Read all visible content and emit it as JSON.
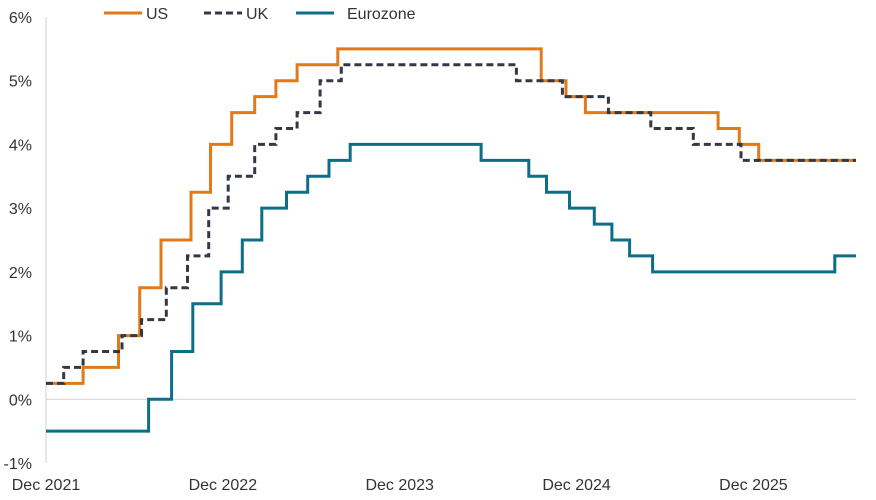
{
  "chart_data": {
    "type": "line",
    "title": "",
    "xlabel": "",
    "ylabel": "",
    "x_unit": "year",
    "xlim": [
      2021.92,
      2026.5
    ],
    "ylim": [
      -1,
      6
    ],
    "grid": false,
    "legend_position": "top",
    "y_ticks": [
      {
        "value": 6,
        "label": "6%"
      },
      {
        "value": 5,
        "label": "5%"
      },
      {
        "value": 4,
        "label": "4%"
      },
      {
        "value": 3,
        "label": "3%"
      },
      {
        "value": 2,
        "label": "2%"
      },
      {
        "value": 1,
        "label": "1%"
      },
      {
        "value": 0,
        "label": "0%"
      },
      {
        "value": -1,
        "label": "-1%"
      }
    ],
    "x_ticks": [
      {
        "value": 2021.92,
        "label": "Dec 2021"
      },
      {
        "value": 2022.92,
        "label": "Dec 2022"
      },
      {
        "value": 2023.92,
        "label": "Dec 2023"
      },
      {
        "value": 2024.92,
        "label": "Dec 2024"
      },
      {
        "value": 2025.92,
        "label": "Dec 2025"
      }
    ],
    "series": [
      {
        "name": "US",
        "color": "#E07A1A",
        "style": "solid",
        "points": [
          [
            2021.92,
            0.25
          ],
          [
            2022.13,
            0.25
          ],
          [
            2022.13,
            0.5
          ],
          [
            2022.33,
            0.5
          ],
          [
            2022.33,
            1.0
          ],
          [
            2022.45,
            1.0
          ],
          [
            2022.45,
            1.75
          ],
          [
            2022.57,
            1.75
          ],
          [
            2022.57,
            2.5
          ],
          [
            2022.74,
            2.5
          ],
          [
            2022.74,
            3.25
          ],
          [
            2022.85,
            3.25
          ],
          [
            2022.85,
            4.0
          ],
          [
            2022.97,
            4.0
          ],
          [
            2022.97,
            4.5
          ],
          [
            2023.1,
            4.5
          ],
          [
            2023.1,
            4.75
          ],
          [
            2023.22,
            4.75
          ],
          [
            2023.22,
            5.0
          ],
          [
            2023.34,
            5.0
          ],
          [
            2023.34,
            5.25
          ],
          [
            2023.57,
            5.25
          ],
          [
            2023.57,
            5.5
          ],
          [
            2024.72,
            5.5
          ],
          [
            2024.72,
            5.0
          ],
          [
            2024.86,
            5.0
          ],
          [
            2024.86,
            4.75
          ],
          [
            2024.97,
            4.75
          ],
          [
            2024.97,
            4.5
          ],
          [
            2025.72,
            4.5
          ],
          [
            2025.72,
            4.25
          ],
          [
            2025.84,
            4.25
          ],
          [
            2025.84,
            4.0
          ],
          [
            2025.95,
            4.0
          ],
          [
            2025.95,
            3.75
          ],
          [
            2026.5,
            3.75
          ]
        ]
      },
      {
        "name": "UK",
        "color": "#333844",
        "style": "dashed",
        "points": [
          [
            2021.92,
            0.25
          ],
          [
            2022.02,
            0.25
          ],
          [
            2022.02,
            0.5
          ],
          [
            2022.13,
            0.5
          ],
          [
            2022.13,
            0.75
          ],
          [
            2022.35,
            0.75
          ],
          [
            2022.35,
            1.0
          ],
          [
            2022.46,
            1.0
          ],
          [
            2022.46,
            1.25
          ],
          [
            2022.6,
            1.25
          ],
          [
            2022.6,
            1.75
          ],
          [
            2022.72,
            1.75
          ],
          [
            2022.72,
            2.25
          ],
          [
            2022.84,
            2.25
          ],
          [
            2022.84,
            3.0
          ],
          [
            2022.95,
            3.0
          ],
          [
            2022.95,
            3.5
          ],
          [
            2023.1,
            3.5
          ],
          [
            2023.1,
            4.0
          ],
          [
            2023.22,
            4.0
          ],
          [
            2023.22,
            4.25
          ],
          [
            2023.34,
            4.25
          ],
          [
            2023.34,
            4.5
          ],
          [
            2023.47,
            4.5
          ],
          [
            2023.47,
            5.0
          ],
          [
            2023.59,
            5.0
          ],
          [
            2023.59,
            5.25
          ],
          [
            2024.58,
            5.25
          ],
          [
            2024.58,
            5.0
          ],
          [
            2024.84,
            5.0
          ],
          [
            2024.84,
            4.75
          ],
          [
            2025.1,
            4.75
          ],
          [
            2025.1,
            4.5
          ],
          [
            2025.34,
            4.5
          ],
          [
            2025.34,
            4.25
          ],
          [
            2025.58,
            4.25
          ],
          [
            2025.58,
            4.0
          ],
          [
            2025.85,
            4.0
          ],
          [
            2025.85,
            3.75
          ],
          [
            2026.5,
            3.75
          ]
        ]
      },
      {
        "name": "Eurozone",
        "color": "#0E6E88",
        "style": "solid",
        "points": [
          [
            2021.92,
            -0.5
          ],
          [
            2022.5,
            -0.5
          ],
          [
            2022.5,
            0.0
          ],
          [
            2022.63,
            0.0
          ],
          [
            2022.63,
            0.75
          ],
          [
            2022.75,
            0.75
          ],
          [
            2022.75,
            1.5
          ],
          [
            2022.91,
            1.5
          ],
          [
            2022.91,
            2.0
          ],
          [
            2023.03,
            2.0
          ],
          [
            2023.03,
            2.5
          ],
          [
            2023.14,
            2.5
          ],
          [
            2023.14,
            3.0
          ],
          [
            2023.28,
            3.0
          ],
          [
            2023.28,
            3.25
          ],
          [
            2023.4,
            3.25
          ],
          [
            2023.4,
            3.5
          ],
          [
            2023.52,
            3.5
          ],
          [
            2023.52,
            3.75
          ],
          [
            2023.64,
            3.75
          ],
          [
            2023.64,
            4.0
          ],
          [
            2024.38,
            4.0
          ],
          [
            2024.38,
            3.75
          ],
          [
            2024.65,
            3.75
          ],
          [
            2024.65,
            3.5
          ],
          [
            2024.75,
            3.5
          ],
          [
            2024.75,
            3.25
          ],
          [
            2024.88,
            3.25
          ],
          [
            2024.88,
            3.0
          ],
          [
            2025.02,
            3.0
          ],
          [
            2025.02,
            2.75
          ],
          [
            2025.12,
            2.75
          ],
          [
            2025.12,
            2.5
          ],
          [
            2025.22,
            2.5
          ],
          [
            2025.22,
            2.25
          ],
          [
            2025.35,
            2.25
          ],
          [
            2025.35,
            2.0
          ],
          [
            2026.38,
            2.0
          ],
          [
            2026.38,
            2.25
          ],
          [
            2026.5,
            2.25
          ]
        ]
      }
    ]
  }
}
